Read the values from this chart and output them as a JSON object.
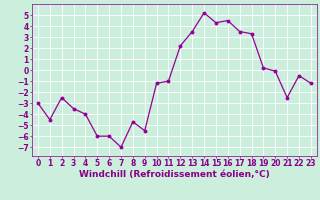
{
  "x": [
    0,
    1,
    2,
    3,
    4,
    5,
    6,
    7,
    8,
    9,
    10,
    11,
    12,
    13,
    14,
    15,
    16,
    17,
    18,
    19,
    20,
    21,
    22,
    23
  ],
  "y": [
    -3,
    -4.5,
    -2.5,
    -3.5,
    -4,
    -6,
    -6,
    -7,
    -4.7,
    -5.5,
    -1.2,
    -1,
    2.2,
    3.5,
    5.2,
    4.3,
    4.5,
    3.5,
    3.3,
    0.2,
    -0.1,
    -2.5,
    -0.5,
    -1.2
  ],
  "line_color": "#990099",
  "marker": "o",
  "marker_size": 1.8,
  "linewidth": 0.9,
  "xlabel": "Windchill (Refroidissement éolien,°C)",
  "xlim": [
    -0.5,
    23.5
  ],
  "ylim": [
    -7.8,
    6.0
  ],
  "yticks": [
    -7,
    -6,
    -5,
    -4,
    -3,
    -2,
    -1,
    0,
    1,
    2,
    3,
    4,
    5
  ],
  "xticks": [
    0,
    1,
    2,
    3,
    4,
    5,
    6,
    7,
    8,
    9,
    10,
    11,
    12,
    13,
    14,
    15,
    16,
    17,
    18,
    19,
    20,
    21,
    22,
    23
  ],
  "bg_color": "#cceedd",
  "grid_color": "#ffffff",
  "xlabel_color": "#880088",
  "xlabel_fontsize": 6.5,
  "tick_fontsize": 5.5,
  "tick_color": "#880088"
}
